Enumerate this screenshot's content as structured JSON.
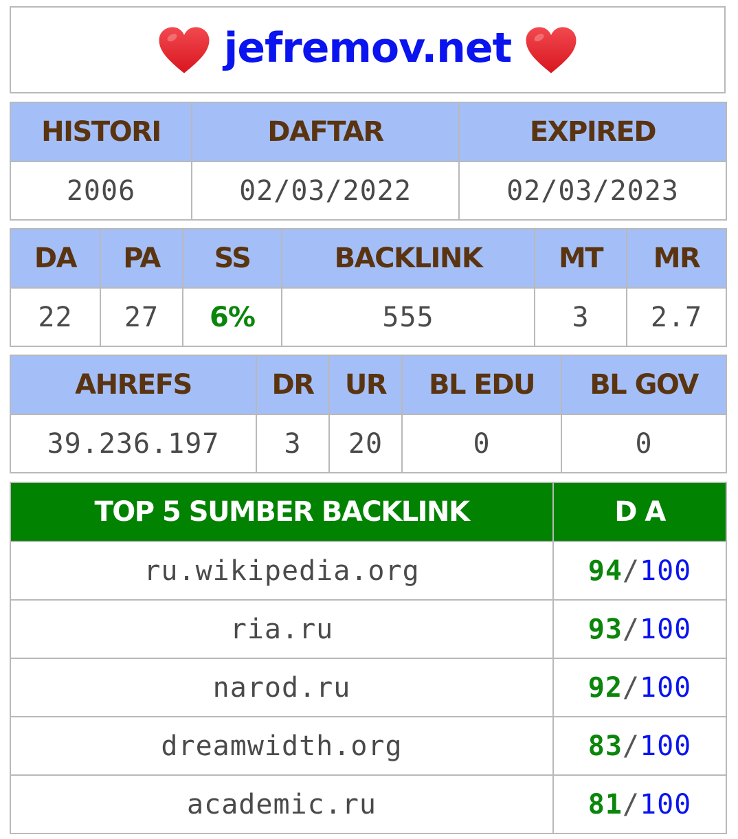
{
  "site": {
    "title": "jefremov.net",
    "heart_color": "#e8232b",
    "title_color": "#0a14ee"
  },
  "registration": {
    "headers": [
      "HISTORI",
      "DAFTAR",
      "EXPIRED"
    ],
    "values": [
      "2006",
      "02/03/2022",
      "02/03/2023"
    ]
  },
  "moz_metrics": {
    "headers": [
      "DA",
      "PA",
      "SS",
      "BACKLINK",
      "MT",
      "MR"
    ],
    "values": [
      "22",
      "27",
      "6%",
      "555",
      "3",
      "2.7"
    ]
  },
  "ahrefs_metrics": {
    "headers": [
      "AHREFS",
      "DR",
      "UR",
      "BL EDU",
      "BL GOV"
    ],
    "values": [
      "39.236.197",
      "3",
      "20",
      "0",
      "0"
    ]
  },
  "top_backlinks": {
    "header_source": "TOP 5 SUMBER BACKLINK",
    "header_da": "D A",
    "max": "100",
    "separator": "/",
    "rows": [
      {
        "domain": "ru.wikipedia.org",
        "da": "94"
      },
      {
        "domain": "ria.ru",
        "da": "93"
      },
      {
        "domain": "narod.ru",
        "da": "92"
      },
      {
        "domain": "dreamwidth.org",
        "da": "83"
      },
      {
        "domain": "academic.ru",
        "da": "81"
      }
    ]
  },
  "colors": {
    "header_bg": "#a4bff8",
    "header_text": "#5a3410",
    "top5_header_bg": "#018201",
    "score_green": "#0a860a",
    "score_blue": "#0a14ee",
    "border": "#b9b9b9"
  }
}
